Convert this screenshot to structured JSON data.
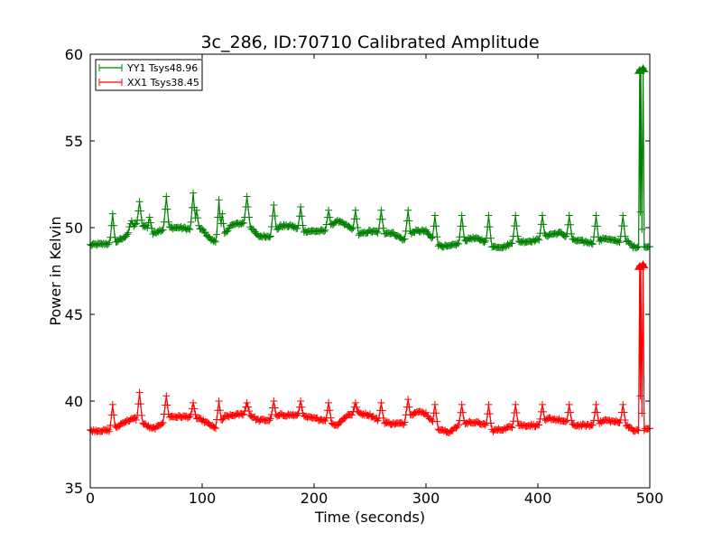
{
  "chart_data": {
    "type": "line",
    "title": "3c_286, ID:70710 Calibrated Amplitude",
    "xlabel": "Time (seconds)",
    "ylabel": "Power in Kelvin",
    "xlim": [
      0,
      500
    ],
    "ylim": [
      35,
      60
    ],
    "xticks": [
      "0",
      "100",
      "200",
      "300",
      "400",
      "500"
    ],
    "yticks": [
      "35",
      "40",
      "45",
      "50",
      "55",
      "60"
    ],
    "legend_position": "top-left",
    "grid": false,
    "series": [
      {
        "name": "YY1 Tsys48.96",
        "color": "#008000",
        "marker": "+",
        "baseline": [
          [
            0,
            49.0
          ],
          [
            20,
            49.1
          ],
          [
            30,
            49.4
          ],
          [
            40,
            50.2
          ],
          [
            50,
            50.1
          ],
          [
            55,
            49.6
          ],
          [
            60,
            49.8
          ],
          [
            70,
            50.0
          ],
          [
            80,
            50.0
          ],
          [
            90,
            49.9
          ],
          [
            100,
            49.9
          ],
          [
            108,
            49.3
          ],
          [
            115,
            49.1
          ],
          [
            125,
            50.1
          ],
          [
            130,
            50.2
          ],
          [
            140,
            50.3
          ],
          [
            150,
            49.5
          ],
          [
            160,
            49.5
          ],
          [
            170,
            50.1
          ],
          [
            180,
            50.1
          ],
          [
            190,
            49.8
          ],
          [
            200,
            49.8
          ],
          [
            210,
            49.8
          ],
          [
            220,
            50.4
          ],
          [
            230,
            50.1
          ],
          [
            240,
            49.6
          ],
          [
            250,
            49.8
          ],
          [
            260,
            49.7
          ],
          [
            270,
            49.7
          ],
          [
            280,
            49.3
          ],
          [
            290,
            49.8
          ],
          [
            300,
            49.8
          ],
          [
            310,
            49.0
          ],
          [
            320,
            48.9
          ],
          [
            330,
            49.1
          ],
          [
            340,
            49.4
          ],
          [
            350,
            49.3
          ],
          [
            360,
            48.9
          ],
          [
            370,
            48.9
          ],
          [
            380,
            49.2
          ],
          [
            390,
            49.2
          ],
          [
            400,
            49.3
          ],
          [
            410,
            49.6
          ],
          [
            420,
            49.7
          ],
          [
            430,
            49.3
          ],
          [
            440,
            49.2
          ],
          [
            450,
            49.1
          ],
          [
            460,
            49.4
          ],
          [
            470,
            49.2
          ],
          [
            480,
            49.2
          ],
          [
            485,
            48.9
          ],
          [
            490,
            48.9
          ],
          [
            495,
            48.9
          ],
          [
            500,
            48.9
          ]
        ],
        "peaks": [
          [
            20,
            50.8
          ],
          [
            37,
            50.4
          ],
          [
            44,
            51.5
          ],
          [
            53,
            50.6
          ],
          [
            68,
            51.8
          ],
          [
            92,
            52.0
          ],
          [
            95,
            51.0
          ],
          [
            115,
            51.6
          ],
          [
            118,
            50.8
          ],
          [
            140,
            51.8
          ],
          [
            164,
            51.3
          ],
          [
            188,
            51.2
          ],
          [
            213,
            51.0
          ],
          [
            237,
            51.0
          ],
          [
            260,
            51.0
          ],
          [
            284,
            51.0
          ],
          [
            308,
            50.7
          ],
          [
            332,
            50.7
          ],
          [
            356,
            50.7
          ],
          [
            380,
            50.7
          ],
          [
            404,
            50.7
          ],
          [
            428,
            50.7
          ],
          [
            452,
            50.7
          ],
          [
            476,
            50.7
          ]
        ],
        "spikes": [
          [
            491,
            59.1
          ],
          [
            494,
            59.2
          ]
        ]
      },
      {
        "name": "XX1 Tsys38.45",
        "color": "#ff0000",
        "marker": "+",
        "baseline": [
          [
            0,
            38.3
          ],
          [
            20,
            38.3
          ],
          [
            30,
            38.8
          ],
          [
            40,
            39.0
          ],
          [
            50,
            38.6
          ],
          [
            55,
            38.4
          ],
          [
            60,
            38.5
          ],
          [
            70,
            39.1
          ],
          [
            80,
            39.1
          ],
          [
            90,
            39.1
          ],
          [
            100,
            38.9
          ],
          [
            108,
            38.6
          ],
          [
            112,
            38.4
          ],
          [
            120,
            39.1
          ],
          [
            130,
            39.2
          ],
          [
            140,
            39.3
          ],
          [
            150,
            38.9
          ],
          [
            160,
            38.9
          ],
          [
            170,
            39.2
          ],
          [
            180,
            39.2
          ],
          [
            190,
            39.1
          ],
          [
            200,
            39.0
          ],
          [
            210,
            38.9
          ],
          [
            220,
            38.6
          ],
          [
            230,
            39.2
          ],
          [
            240,
            39.3
          ],
          [
            250,
            39.2
          ],
          [
            260,
            38.8
          ],
          [
            270,
            38.7
          ],
          [
            280,
            38.7
          ],
          [
            290,
            39.4
          ],
          [
            300,
            39.3
          ],
          [
            310,
            38.4
          ],
          [
            320,
            38.2
          ],
          [
            330,
            38.6
          ],
          [
            340,
            38.8
          ],
          [
            350,
            38.7
          ],
          [
            360,
            38.3
          ],
          [
            370,
            38.4
          ],
          [
            380,
            38.6
          ],
          [
            390,
            38.6
          ],
          [
            400,
            38.6
          ],
          [
            410,
            39.0
          ],
          [
            420,
            38.9
          ],
          [
            430,
            38.6
          ],
          [
            440,
            38.6
          ],
          [
            450,
            38.6
          ],
          [
            460,
            38.9
          ],
          [
            470,
            38.8
          ],
          [
            480,
            38.6
          ],
          [
            485,
            38.3
          ],
          [
            490,
            38.3
          ],
          [
            495,
            38.4
          ],
          [
            500,
            38.4
          ]
        ],
        "peaks": [
          [
            20,
            39.8
          ],
          [
            44,
            40.5
          ],
          [
            68,
            40.3
          ],
          [
            92,
            39.9
          ],
          [
            115,
            40.0
          ],
          [
            140,
            39.9
          ],
          [
            164,
            40.0
          ],
          [
            188,
            40.0
          ],
          [
            213,
            39.9
          ],
          [
            237,
            39.9
          ],
          [
            260,
            39.9
          ],
          [
            284,
            40.1
          ],
          [
            308,
            39.8
          ],
          [
            332,
            39.8
          ],
          [
            356,
            39.8
          ],
          [
            380,
            39.8
          ],
          [
            404,
            39.8
          ],
          [
            428,
            39.8
          ],
          [
            452,
            39.8
          ],
          [
            476,
            39.8
          ]
        ],
        "spikes": [
          [
            491,
            47.8
          ],
          [
            494,
            47.9
          ]
        ]
      }
    ]
  }
}
